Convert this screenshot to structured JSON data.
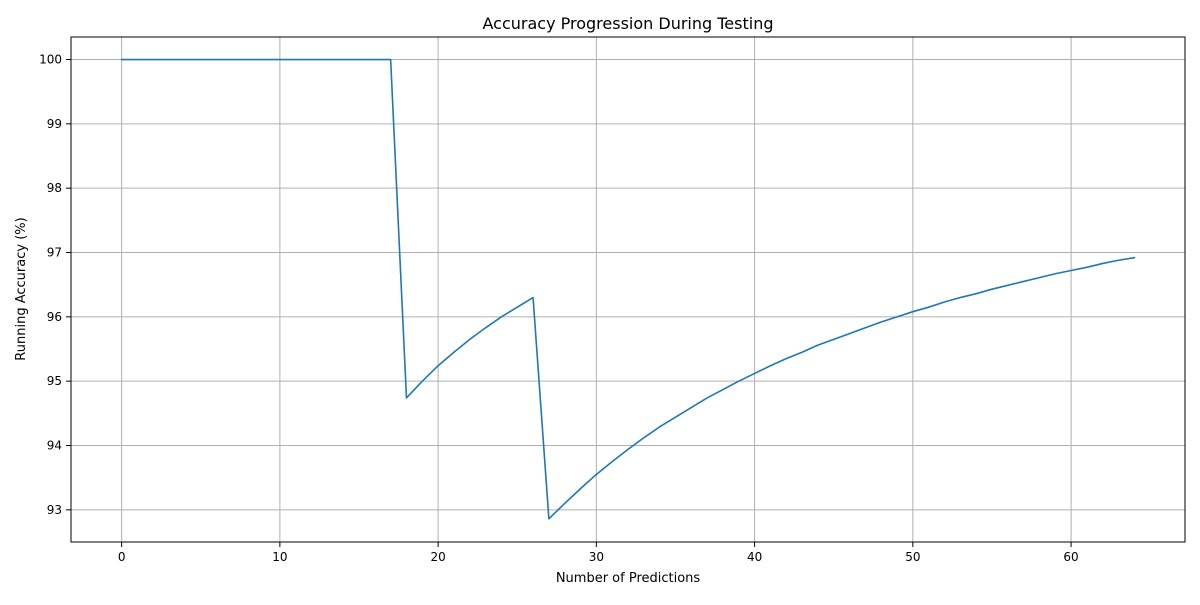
{
  "chart_data": {
    "type": "line",
    "title": "Accuracy Progression During Testing",
    "xlabel": "Number of Predictions",
    "ylabel": "Running Accuracy (%)",
    "xlim": [
      -3.2,
      67.2
    ],
    "ylim": [
      92.5,
      100.35
    ],
    "grid": true,
    "x_ticks": [
      0,
      10,
      20,
      30,
      40,
      50,
      60
    ],
    "y_ticks": [
      93,
      94,
      95,
      96,
      97,
      98,
      99,
      100
    ],
    "series": [
      {
        "color": "#1f77b4",
        "x": [
          0,
          1,
          2,
          3,
          4,
          5,
          6,
          7,
          8,
          9,
          10,
          11,
          12,
          13,
          14,
          15,
          16,
          17,
          18,
          19,
          20,
          21,
          22,
          23,
          24,
          25,
          26,
          27,
          28,
          29,
          30,
          31,
          32,
          33,
          34,
          35,
          36,
          37,
          38,
          39,
          40,
          41,
          42,
          43,
          44,
          45,
          46,
          47,
          48,
          49,
          50,
          51,
          52,
          53,
          54,
          55,
          56,
          57,
          58,
          59,
          60,
          61,
          62,
          63,
          64
        ],
        "y": [
          100.0,
          100.0,
          100.0,
          100.0,
          100.0,
          100.0,
          100.0,
          100.0,
          100.0,
          100.0,
          100.0,
          100.0,
          100.0,
          100.0,
          100.0,
          100.0,
          100.0,
          100.0,
          94.74,
          95.0,
          95.24,
          95.45,
          95.65,
          95.83,
          96.0,
          96.15,
          96.3,
          92.86,
          93.1,
          93.33,
          93.55,
          93.75,
          93.94,
          94.12,
          94.29,
          94.44,
          94.59,
          94.74,
          94.87,
          95.0,
          95.12,
          95.24,
          95.35,
          95.45,
          95.56,
          95.65,
          95.74,
          95.83,
          95.92,
          96.0,
          96.08,
          96.15,
          96.23,
          96.3,
          96.36,
          96.43,
          96.49,
          96.55,
          96.61,
          96.67,
          96.72,
          96.77,
          96.83,
          96.88,
          96.92
        ]
      }
    ]
  }
}
